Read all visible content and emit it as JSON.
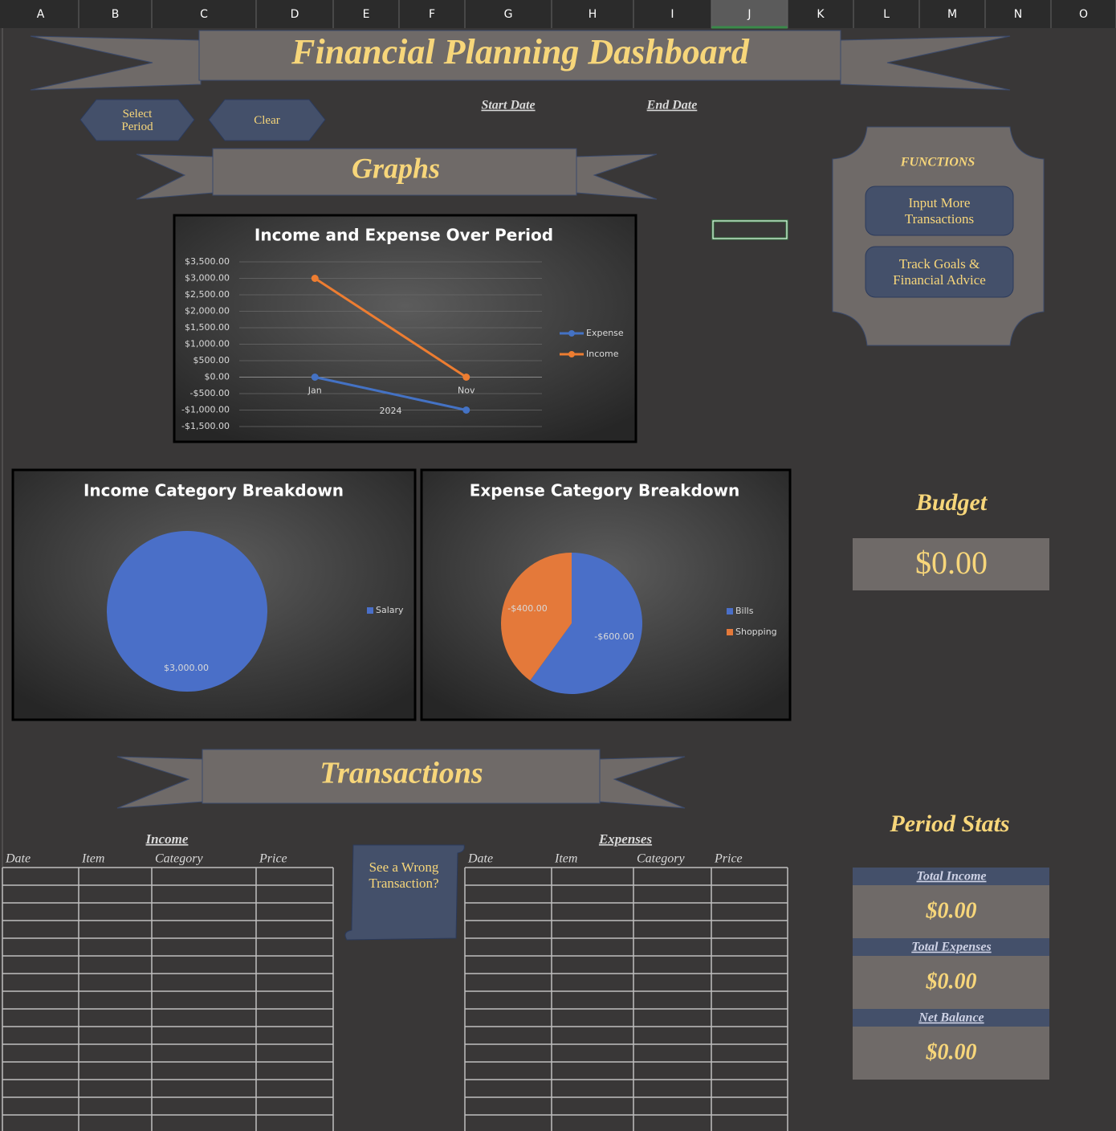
{
  "columns": [
    "A",
    "B",
    "C",
    "D",
    "E",
    "F",
    "G",
    "H",
    "I",
    "J",
    "K",
    "L",
    "M",
    "N",
    "O"
  ],
  "header": {
    "title": "Financial Planning Dashboard"
  },
  "controls": {
    "select_period": "Select Period",
    "clear": "Clear",
    "start_date": "Start Date",
    "end_date": "End Date"
  },
  "sections": {
    "graphs": "Graphs",
    "transactions": "Transactions"
  },
  "functions": {
    "title": "FUNCTIONS",
    "buttons": [
      "Input More Transactions",
      "Track Goals & Financial Advice"
    ]
  },
  "chart_data": [
    {
      "type": "line",
      "title": "Income and Expense Over Period",
      "categories": [
        "Jan",
        "Nov"
      ],
      "x_group_label": "2024",
      "series": [
        {
          "name": "Expense",
          "color": "#4472c4",
          "values": [
            0,
            -1000
          ]
        },
        {
          "name": "Income",
          "color": "#ed7d31",
          "values": [
            3000,
            0
          ]
        }
      ],
      "ylim": [
        -1500,
        3500
      ],
      "yticks": [
        {
          "value": 3500,
          "label": "$3,500.00"
        },
        {
          "value": 3000,
          "label": "$3,000.00"
        },
        {
          "value": 2500,
          "label": "$2,500.00"
        },
        {
          "value": 2000,
          "label": "$2,000.00"
        },
        {
          "value": 1500,
          "label": "$1,500.00"
        },
        {
          "value": 1000,
          "label": "$1,000.00"
        },
        {
          "value": 500,
          "label": "$500.00"
        },
        {
          "value": 0,
          "label": "$0.00"
        },
        {
          "value": -500,
          "label": "-$500.00"
        },
        {
          "value": -1000,
          "label": "-$1,000.00"
        },
        {
          "value": -1500,
          "label": "-$1,500.00"
        }
      ],
      "grid": true
    },
    {
      "type": "pie",
      "title": "Income Category Breakdown",
      "categories": [
        "Salary"
      ],
      "values": [
        3000
      ],
      "value_labels": [
        "$3,000.00"
      ],
      "colors": [
        "#4a6fc8"
      ]
    },
    {
      "type": "pie",
      "title": "Expense Category Breakdown",
      "categories": [
        "Bills",
        "Shopping"
      ],
      "values": [
        -600,
        -400
      ],
      "value_labels": [
        "-$600.00",
        "-$400.00"
      ],
      "colors": [
        "#4a6fc8",
        "#e4793a"
      ]
    }
  ],
  "budget": {
    "title": "Budget",
    "value": "$0.00"
  },
  "period_stats": {
    "title": "Period Stats",
    "items": [
      {
        "label": "Total Income",
        "value": "$0.00"
      },
      {
        "label": "Total Expenses",
        "value": "$0.00"
      },
      {
        "label": "Net Balance",
        "value": "$0.00"
      }
    ]
  },
  "transactions": {
    "income": {
      "title": "Income",
      "headers": [
        "Date",
        "Item",
        "Category",
        "Price"
      ]
    },
    "expenses": {
      "title": "Expenses",
      "headers": [
        "Date",
        "Item",
        "Category",
        "Price"
      ]
    },
    "wrong_button": "See a Wrong Transaction?"
  }
}
